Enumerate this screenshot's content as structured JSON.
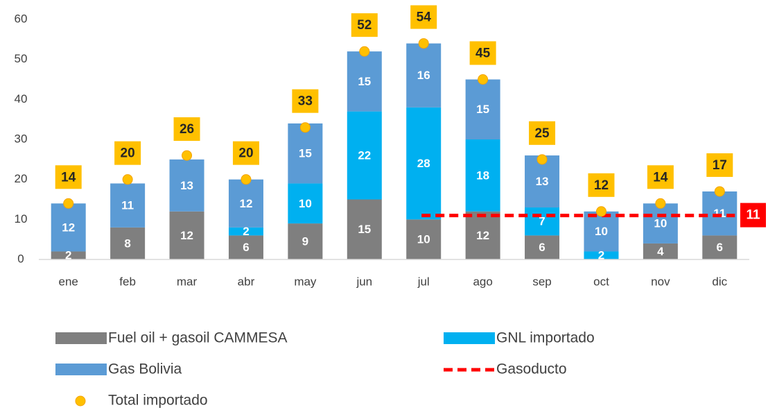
{
  "chart_data": {
    "type": "bar",
    "categories": [
      "ene",
      "feb",
      "mar",
      "abr",
      "may",
      "jun",
      "jul",
      "ago",
      "sep",
      "oct",
      "nov",
      "dic"
    ],
    "series": [
      {
        "name": "Fuel oil + gasoil CAMMESA",
        "type": "bar",
        "color": "#7f7f7f",
        "values": [
          2,
          8,
          12,
          6,
          9,
          15,
          10,
          12,
          6,
          null,
          4,
          6
        ]
      },
      {
        "name": "GNL importado",
        "type": "bar",
        "color": "#00b0f0",
        "values": [
          null,
          null,
          null,
          2,
          10,
          22,
          28,
          18,
          7,
          2,
          null,
          null
        ]
      },
      {
        "name": "Gas Bolivia",
        "type": "bar",
        "color": "#5b9bd5",
        "values": [
          12,
          11,
          13,
          12,
          15,
          15,
          16,
          15,
          13,
          10,
          10,
          11
        ]
      },
      {
        "name": "Gasoducto",
        "type": "line",
        "color": "#ff0000",
        "values": [
          null,
          null,
          null,
          null,
          null,
          null,
          11,
          11,
          11,
          11,
          11,
          11
        ]
      },
      {
        "name": "Total importado",
        "type": "scatter",
        "color": "#ffc000",
        "values": [
          14,
          20,
          26,
          20,
          33,
          52,
          54,
          45,
          25,
          12,
          14,
          17
        ]
      }
    ],
    "ylim": [
      0,
      60
    ],
    "yticks": [
      0,
      10,
      20,
      30,
      40,
      50,
      60
    ],
    "grid": false
  }
}
